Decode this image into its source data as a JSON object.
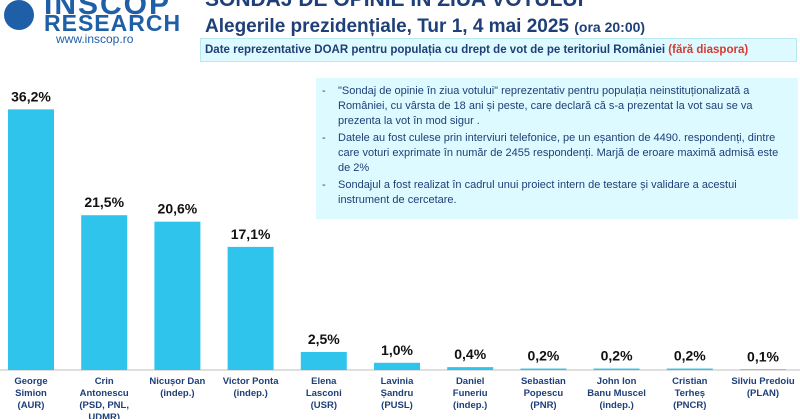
{
  "logo": {
    "brand_top": "INSCOP",
    "brand_bottom": "RESEARCH",
    "website": "www.inscop.ro"
  },
  "header": {
    "title_line1": "SONDAJ DE OPINIE ÎN ZIUA VOTULUI",
    "title_line2": "Alegerile prezidențiale, Tur 1, 4 mai 2025",
    "title_line2_sub": "(ora 20:00)",
    "banner_text": "Date reprezentative DOAR pentru populația cu drept de vot de pe teritoriul României",
    "banner_highlight": "(fără diaspora)"
  },
  "notes": [
    {
      "dash": "-",
      "text": "\"Sondaj de opinie în ziua votului\" reprezentativ pentru populația neinstituționalizată a României, cu vârsta de 18 ani și peste, care declară că s-a prezentat la vot sau se va prezenta la vot în mod sigur ."
    },
    {
      "dash": "-",
      "text": "Datele au fost culese prin interviuri telefonice, pe un eșantion de 4490. respondenți, dintre care voturi exprimate în număr de 2455 respondenți. Marjă de eroare maximă admisă este de 2%"
    },
    {
      "dash": "-",
      "text": "Sondajul a fost realizat în cadrul unui proiect intern de testare și validare a acestui instrument de cercetare."
    }
  ],
  "colors": {
    "bar": "#2fc4ec",
    "title": "#1e3f78",
    "banner_bg": "#dcfaff",
    "highlight": "#d63a2f"
  },
  "chart_data": {
    "type": "bar",
    "title": "",
    "xlabel": "",
    "ylabel": "",
    "ylim": [
      0,
      40
    ],
    "grid": false,
    "categories": [
      [
        "George",
        "Simion",
        "(AUR)"
      ],
      [
        "Crin",
        "Antonescu",
        "(PSD, PNL,",
        "UDMR)"
      ],
      [
        "Nicușor Dan",
        "(indep.)"
      ],
      [
        "Victor Ponta",
        "(indep.)"
      ],
      [
        "Elena",
        "Lasconi",
        "(USR)"
      ],
      [
        "Lavinia",
        "Șandru",
        "(PUSL)"
      ],
      [
        "Daniel",
        "Funeriu",
        "(indep.)"
      ],
      [
        "Sebastian",
        "Popescu",
        "(PNR)"
      ],
      [
        "John Ion",
        "Banu Muscel",
        "(indep.)"
      ],
      [
        "Cristian",
        "Terheș",
        "(PNCR)"
      ],
      [
        "Silviu Predoiu",
        "(PLAN)"
      ]
    ],
    "values": [
      36.2,
      21.5,
      20.6,
      17.1,
      2.5,
      1.0,
      0.4,
      0.2,
      0.2,
      0.2,
      0.1
    ],
    "value_labels": [
      "36,2%",
      "21,5%",
      "20,6%",
      "17,1%",
      "2,5%",
      "1,0%",
      "0,4%",
      "0,2%",
      "0,2%",
      "0,2%",
      "0,1%"
    ]
  }
}
